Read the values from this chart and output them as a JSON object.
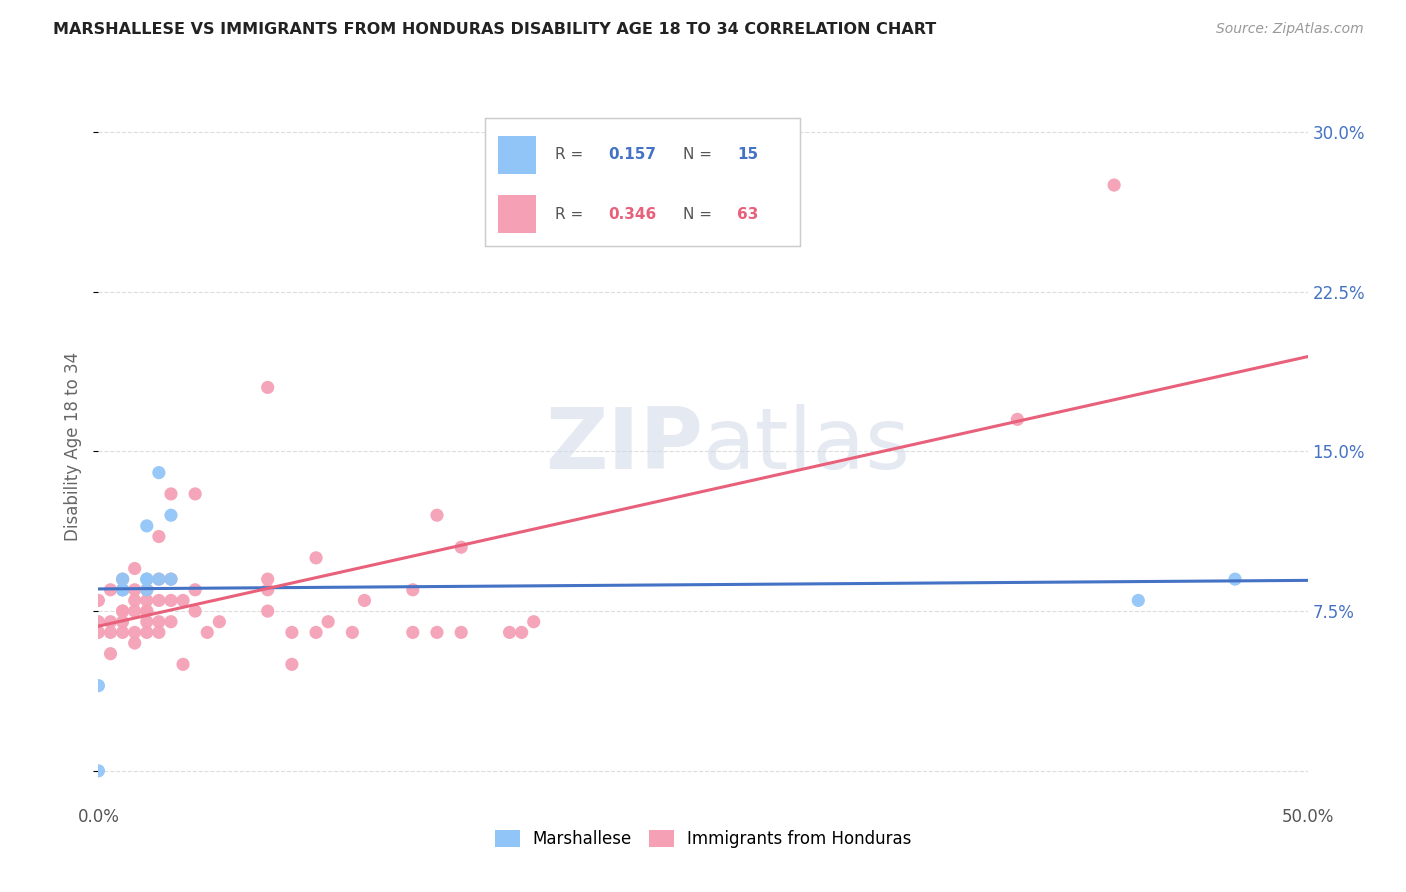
{
  "title": "MARSHALLESE VS IMMIGRANTS FROM HONDURAS DISABILITY AGE 18 TO 34 CORRELATION CHART",
  "source": "Source: ZipAtlas.com",
  "ylabel": "Disability Age 18 to 34",
  "xmin": 0.0,
  "xmax": 0.5,
  "ymin": -0.015,
  "ymax": 0.32,
  "yticks": [
    0.0,
    0.075,
    0.15,
    0.225,
    0.3
  ],
  "ytick_labels": [
    "",
    "7.5%",
    "15.0%",
    "22.5%",
    "30.0%"
  ],
  "marshallese_color": "#92c5f7",
  "honduras_color": "#f5a0b5",
  "marshallese_line_color": "#4472c4",
  "honduras_line_color": "#e8607a",
  "marshallese_label": "Marshallese",
  "honduras_label": "Immigrants from Honduras",
  "legend_r1_prefix": "R = ",
  "legend_r1_r": "0.157",
  "legend_r1_n_prefix": "N = ",
  "legend_r1_n": "15",
  "legend_r2_prefix": "R = ",
  "legend_r2_r": "0.346",
  "legend_r2_n_prefix": "N = ",
  "legend_r2_n": "63",
  "marshallese_x": [
    0.0,
    0.0,
    0.01,
    0.01,
    0.01,
    0.02,
    0.02,
    0.02,
    0.02,
    0.025,
    0.025,
    0.03,
    0.03,
    0.43,
    0.47
  ],
  "marshallese_y": [
    0.0,
    0.04,
    0.085,
    0.085,
    0.09,
    0.085,
    0.09,
    0.09,
    0.115,
    0.09,
    0.14,
    0.09,
    0.12,
    0.08,
    0.09
  ],
  "honduras_x": [
    0.0,
    0.0,
    0.0,
    0.005,
    0.005,
    0.005,
    0.005,
    0.01,
    0.01,
    0.01,
    0.01,
    0.01,
    0.01,
    0.015,
    0.015,
    0.015,
    0.015,
    0.015,
    0.015,
    0.02,
    0.02,
    0.02,
    0.02,
    0.02,
    0.02,
    0.025,
    0.025,
    0.025,
    0.025,
    0.025,
    0.03,
    0.03,
    0.03,
    0.03,
    0.035,
    0.035,
    0.04,
    0.04,
    0.04,
    0.045,
    0.05,
    0.07,
    0.07,
    0.07,
    0.07,
    0.08,
    0.08,
    0.09,
    0.09,
    0.095,
    0.105,
    0.11,
    0.13,
    0.13,
    0.14,
    0.14,
    0.15,
    0.15,
    0.17,
    0.175,
    0.18,
    0.38,
    0.42
  ],
  "honduras_y": [
    0.065,
    0.07,
    0.08,
    0.055,
    0.065,
    0.07,
    0.085,
    0.065,
    0.07,
    0.075,
    0.075,
    0.085,
    0.09,
    0.06,
    0.065,
    0.075,
    0.08,
    0.085,
    0.095,
    0.065,
    0.07,
    0.075,
    0.075,
    0.08,
    0.085,
    0.065,
    0.07,
    0.08,
    0.09,
    0.11,
    0.07,
    0.08,
    0.09,
    0.13,
    0.05,
    0.08,
    0.075,
    0.085,
    0.13,
    0.065,
    0.07,
    0.075,
    0.085,
    0.09,
    0.18,
    0.05,
    0.065,
    0.065,
    0.1,
    0.07,
    0.065,
    0.08,
    0.065,
    0.085,
    0.065,
    0.12,
    0.065,
    0.105,
    0.065,
    0.065,
    0.07,
    0.165,
    0.275
  ]
}
